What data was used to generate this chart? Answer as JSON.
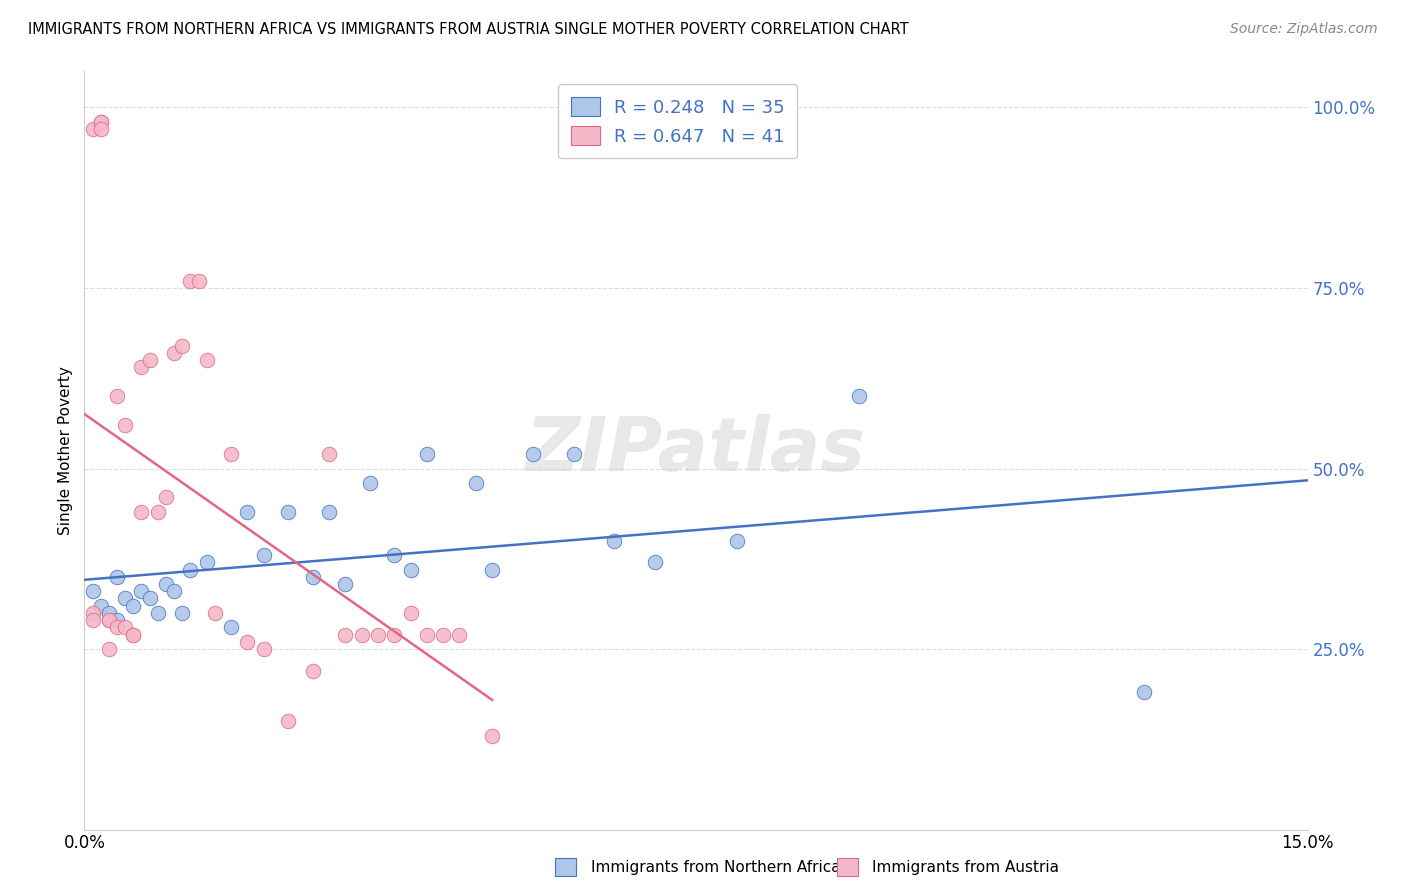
{
  "title": "IMMIGRANTS FROM NORTHERN AFRICA VS IMMIGRANTS FROM AUSTRIA SINGLE MOTHER POVERTY CORRELATION CHART",
  "source": "Source: ZipAtlas.com",
  "ylabel": "Single Mother Poverty",
  "xlim": [
    0,
    0.15
  ],
  "ylim": [
    0,
    1.05
  ],
  "yticks": [
    0.25,
    0.5,
    0.75,
    1.0
  ],
  "ytick_labels": [
    "25.0%",
    "50.0%",
    "75.0%",
    "100.0%"
  ],
  "xtick_positions": [
    0.0,
    0.03,
    0.06,
    0.09,
    0.12,
    0.15
  ],
  "color_blue": "#aec6e8",
  "color_pink": "#f4b8c8",
  "line_color_blue": "#4472c4",
  "line_color_pink": "#e06880",
  "watermark": "ZIPatlas",
  "series1_name": "Immigrants from Northern Africa",
  "series2_name": "Immigrants from Austria",
  "blue_x": [
    0.001,
    0.002,
    0.003,
    0.004,
    0.004,
    0.005,
    0.006,
    0.007,
    0.008,
    0.009,
    0.01,
    0.011,
    0.012,
    0.013,
    0.015,
    0.018,
    0.02,
    0.022,
    0.025,
    0.028,
    0.03,
    0.032,
    0.035,
    0.038,
    0.04,
    0.042,
    0.048,
    0.05,
    0.055,
    0.06,
    0.065,
    0.07,
    0.08,
    0.095,
    0.13
  ],
  "blue_y": [
    0.33,
    0.31,
    0.3,
    0.35,
    0.29,
    0.32,
    0.31,
    0.33,
    0.32,
    0.3,
    0.34,
    0.33,
    0.3,
    0.36,
    0.37,
    0.28,
    0.44,
    0.38,
    0.44,
    0.35,
    0.44,
    0.34,
    0.48,
    0.38,
    0.36,
    0.52,
    0.48,
    0.36,
    0.52,
    0.52,
    0.4,
    0.37,
    0.4,
    0.6,
    0.19
  ],
  "pink_x": [
    0.001,
    0.001,
    0.001,
    0.002,
    0.002,
    0.002,
    0.003,
    0.003,
    0.003,
    0.004,
    0.004,
    0.005,
    0.005,
    0.006,
    0.006,
    0.007,
    0.007,
    0.008,
    0.009,
    0.01,
    0.011,
    0.012,
    0.013,
    0.014,
    0.015,
    0.016,
    0.018,
    0.02,
    0.022,
    0.025,
    0.028,
    0.03,
    0.032,
    0.034,
    0.036,
    0.038,
    0.04,
    0.042,
    0.044,
    0.046,
    0.05
  ],
  "pink_y": [
    0.3,
    0.29,
    0.97,
    0.98,
    0.98,
    0.97,
    0.29,
    0.29,
    0.25,
    0.28,
    0.6,
    0.56,
    0.28,
    0.27,
    0.27,
    0.44,
    0.64,
    0.65,
    0.44,
    0.46,
    0.66,
    0.67,
    0.76,
    0.76,
    0.65,
    0.3,
    0.52,
    0.26,
    0.25,
    0.15,
    0.22,
    0.52,
    0.27,
    0.27,
    0.27,
    0.27,
    0.3,
    0.27,
    0.27,
    0.27,
    0.13
  ]
}
